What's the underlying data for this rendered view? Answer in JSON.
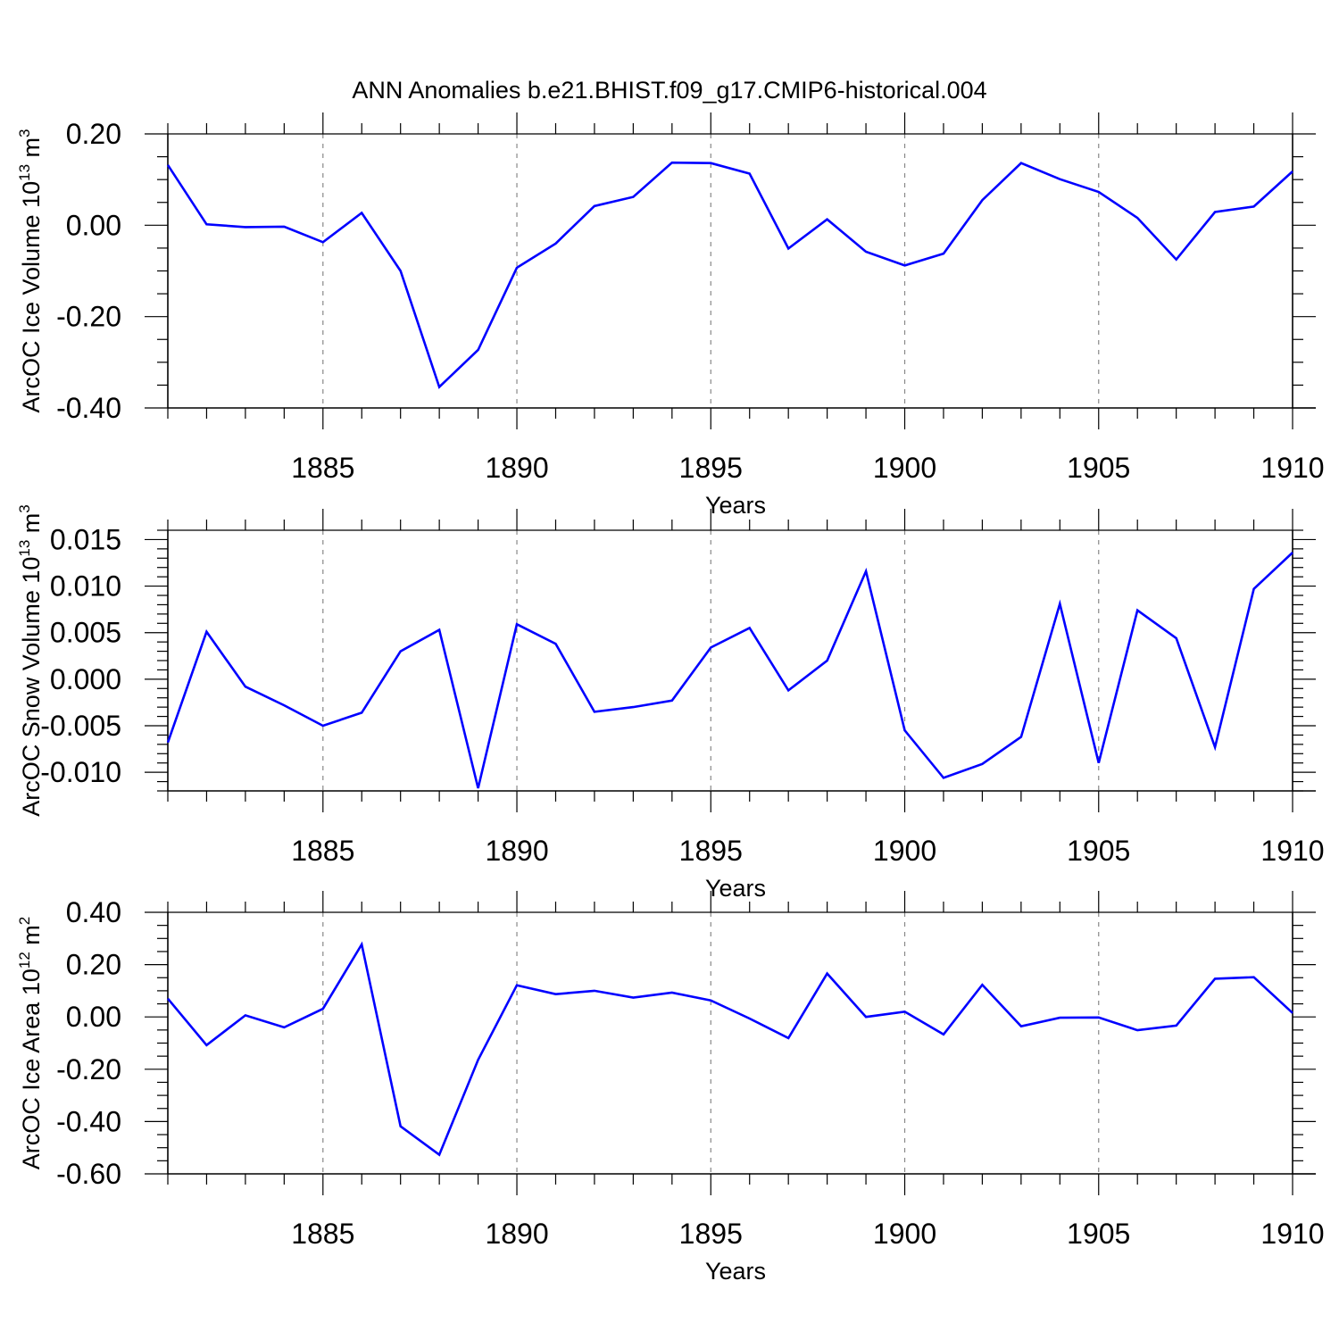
{
  "chart_data": {
    "title": "ANN Anomalies b.e21.BHIST.f09_g17.CMIP6-historical.004",
    "line_color": "#0000ff",
    "x_ticks": [
      1885,
      1890,
      1895,
      1900,
      1905,
      1910
    ],
    "x_tick_labels": [
      "1885",
      "1890",
      "1895",
      "1900",
      "1905",
      "1910"
    ],
    "panels": [
      {
        "type": "line",
        "xlabel": "Years",
        "ylabel": {
          "text": "ArcOC Ice Volume 10",
          "sup1": "13",
          "mid": " m",
          "sup2": "3"
        },
        "xlim": [
          1881,
          1910
        ],
        "ylim": [
          -0.4,
          0.2
        ],
        "y_ticks": [
          -0.4,
          -0.2,
          0.0,
          0.2
        ],
        "y_tick_labels": [
          "-0.40",
          "-0.20",
          "0.00",
          "0.20"
        ],
        "y_minor_step": 0.05,
        "series": [
          {
            "name": "ArcOC Ice Volume",
            "x": [
              1881,
              1882,
              1883,
              1884,
              1885,
              1886,
              1887,
              1888,
              1889,
              1890,
              1891,
              1892,
              1893,
              1894,
              1895,
              1896,
              1897,
              1898,
              1899,
              1900,
              1901,
              1902,
              1903,
              1904,
              1905,
              1906,
              1907,
              1908,
              1909,
              1910
            ],
            "values": [
              0.132,
              0.002,
              -0.004,
              -0.003,
              -0.037,
              0.027,
              -0.1,
              -0.354,
              -0.273,
              -0.093,
              -0.04,
              0.042,
              0.062,
              0.137,
              0.136,
              0.113,
              -0.051,
              0.013,
              -0.058,
              -0.088,
              -0.062,
              0.055,
              0.136,
              0.101,
              0.073,
              0.016,
              -0.075,
              0.029,
              0.041,
              0.118
            ]
          }
        ]
      },
      {
        "type": "line",
        "xlabel": "Years",
        "ylabel": {
          "text": "ArcOC Snow Volume 10",
          "sup1": "13",
          "mid": " m",
          "sup2": "3"
        },
        "xlim": [
          1881,
          1910
        ],
        "ylim": [
          -0.012,
          0.016
        ],
        "y_ticks": [
          -0.01,
          -0.005,
          0.0,
          0.005,
          0.01,
          0.015
        ],
        "y_tick_labels": [
          "-0.010",
          "-0.005",
          "0.000",
          "0.005",
          "0.010",
          "0.015"
        ],
        "y_minor_step": 0.001,
        "series": [
          {
            "name": "ArcOC Snow Volume",
            "x": [
              1881,
              1882,
              1883,
              1884,
              1885,
              1886,
              1887,
              1888,
              1889,
              1890,
              1891,
              1892,
              1893,
              1894,
              1895,
              1896,
              1897,
              1898,
              1899,
              1900,
              1901,
              1902,
              1903,
              1904,
              1905,
              1906,
              1907,
              1908,
              1909,
              1910
            ],
            "values": [
              -0.0068,
              0.0051,
              -0.0008,
              -0.0028,
              -0.005,
              -0.0036,
              0.003,
              0.0053,
              -0.0117,
              0.0059,
              0.0038,
              -0.0035,
              -0.003,
              -0.0023,
              0.0034,
              0.0055,
              -0.0012,
              0.002,
              0.0116,
              -0.0055,
              -0.0106,
              -0.0091,
              -0.0062,
              0.0081,
              -0.009,
              0.0074,
              0.0044,
              -0.0073,
              0.0097,
              0.0136
            ]
          }
        ]
      },
      {
        "type": "line",
        "xlabel": "Years",
        "ylabel": {
          "text": "ArcOC Ice Area 10",
          "sup1": "12",
          "mid": " m",
          "sup2": "2"
        },
        "xlim": [
          1881,
          1910
        ],
        "ylim": [
          -0.6,
          0.4
        ],
        "y_ticks": [
          -0.6,
          -0.4,
          -0.2,
          0.0,
          0.2,
          0.4
        ],
        "y_tick_labels": [
          "-0.60",
          "-0.40",
          "-0.20",
          "0.00",
          "0.20",
          "0.40"
        ],
        "y_minor_step": 0.05,
        "series": [
          {
            "name": "ArcOC Ice Area",
            "x": [
              1881,
              1882,
              1883,
              1884,
              1885,
              1886,
              1887,
              1888,
              1889,
              1890,
              1891,
              1892,
              1893,
              1894,
              1895,
              1896,
              1897,
              1898,
              1899,
              1900,
              1901,
              1902,
              1903,
              1904,
              1905,
              1906,
              1907,
              1908,
              1909,
              1910
            ],
            "values": [
              0.07,
              -0.108,
              0.006,
              -0.04,
              0.031,
              0.277,
              -0.418,
              -0.527,
              -0.164,
              0.121,
              0.087,
              0.1,
              0.074,
              0.093,
              0.063,
              -0.006,
              -0.081,
              0.166,
              0.0,
              0.02,
              -0.067,
              0.123,
              -0.036,
              -0.003,
              -0.002,
              -0.051,
              -0.033,
              0.146,
              0.152,
              0.015
            ]
          }
        ]
      }
    ]
  }
}
